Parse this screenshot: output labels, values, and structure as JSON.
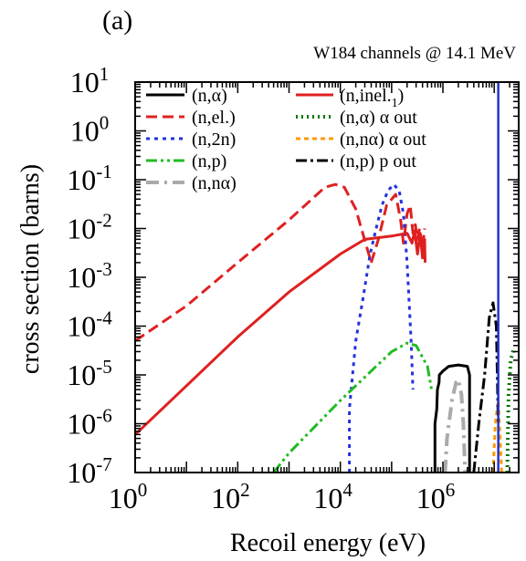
{
  "panel_label": "(a)",
  "chart_data": {
    "type": "line",
    "title": "W184 channels @ 14.1 MeV",
    "xlabel": "Recoil energy (eV)",
    "ylabel": "cross section (barns)",
    "x_scale": "log",
    "y_scale": "log",
    "xlim": [
      1,
      30000000
    ],
    "ylim": [
      1e-07,
      10
    ],
    "x_ticks": [
      {
        "value": 1,
        "base": "10",
        "exp": "0"
      },
      {
        "value": 100,
        "base": "10",
        "exp": "2"
      },
      {
        "value": 10000,
        "base": "10",
        "exp": "4"
      },
      {
        "value": 1000000,
        "base": "10",
        "exp": "6"
      }
    ],
    "y_ticks": [
      {
        "value": 10,
        "base": "10",
        "exp": "1"
      },
      {
        "value": 1,
        "base": "10",
        "exp": "0"
      },
      {
        "value": 0.1,
        "base": "10",
        "exp": "-1"
      },
      {
        "value": 0.01,
        "base": "10",
        "exp": "-2"
      },
      {
        "value": 0.001,
        "base": "10",
        "exp": "-3"
      },
      {
        "value": 0.0001,
        "base": "10",
        "exp": "-4"
      },
      {
        "value": 1e-05,
        "base": "10",
        "exp": "-5"
      },
      {
        "value": 1e-06,
        "base": "10",
        "exp": "-6"
      },
      {
        "value": 1e-07,
        "base": "10",
        "exp": "-7"
      }
    ],
    "grid": false,
    "legend_placement": "top",
    "vertical_lines": [
      {
        "x": 12000000,
        "color": "#2233cc"
      }
    ],
    "series": [
      {
        "name": "(n,α)",
        "color": "#000000",
        "dash": "solid",
        "width": 3,
        "points": [
          [
            700000,
            1e-07
          ],
          [
            700000,
            1e-06
          ],
          [
            760000,
            2e-06
          ],
          [
            780000,
            5e-06
          ],
          [
            840000,
            7e-06
          ],
          [
            850000,
            1e-05
          ],
          [
            1000000,
            1.2e-05
          ],
          [
            1300000,
            1.5e-05
          ],
          [
            2000000,
            1.6e-05
          ],
          [
            3000000,
            1.5e-05
          ],
          [
            3300000,
            1e-05
          ],
          [
            3300000,
            1e-07
          ]
        ]
      },
      {
        "name": "(n,el.)",
        "color": "#e02020",
        "dash": "12,6",
        "width": 3,
        "points": [
          [
            1,
            5e-05
          ],
          [
            10,
            0.00026
          ],
          [
            100,
            0.002
          ],
          [
            1000,
            0.015
          ],
          [
            5000,
            0.07
          ],
          [
            8000,
            0.08
          ],
          [
            12000,
            0.07
          ],
          [
            20000,
            0.025
          ],
          [
            40000,
            0.002
          ],
          [
            55000,
            0.006
          ],
          [
            80000,
            0.03
          ],
          [
            120000,
            0.05
          ],
          [
            150000,
            0.015
          ],
          [
            170000,
            0.005
          ],
          [
            200000,
            0.02
          ],
          [
            230000,
            0.03
          ],
          [
            260000,
            0.008
          ],
          [
            290000,
            0.012
          ],
          [
            320000,
            0.006
          ],
          [
            350000,
            0.01
          ],
          [
            400000,
            0.004
          ],
          [
            440000,
            0.01
          ]
        ]
      },
      {
        "name": "(n,2n)",
        "color": "#2233dd",
        "dash": "4,5",
        "width": 3,
        "points": [
          [
            15000,
            1e-07
          ],
          [
            15000,
            2e-06
          ],
          [
            20000,
            5e-05
          ],
          [
            28000,
            0.0004
          ],
          [
            38000,
            0.003
          ],
          [
            50000,
            0.01
          ],
          [
            65000,
            0.03
          ],
          [
            85000,
            0.06
          ],
          [
            110000,
            0.08
          ],
          [
            140000,
            0.06
          ],
          [
            170000,
            0.02
          ],
          [
            200000,
            0.002
          ],
          [
            240000,
            5e-05
          ],
          [
            260000,
            5e-06
          ]
        ]
      },
      {
        "name": "(n,p)",
        "color": "#22bb22",
        "dash": "12,4,3,4,3,4",
        "width": 3,
        "points": [
          [
            500,
            1e-07
          ],
          [
            1000,
            2.5e-07
          ],
          [
            10000,
            3e-06
          ],
          [
            50000,
            1.5e-05
          ],
          [
            100000,
            3e-05
          ],
          [
            200000,
            4.5e-05
          ],
          [
            300000,
            4e-05
          ],
          [
            500000,
            1.5e-05
          ],
          [
            600000,
            5e-06
          ]
        ]
      },
      {
        "name": "(n,nα)",
        "color": "#aaaaaa",
        "dash": "14,6,3,6",
        "width": 4,
        "points": [
          [
            1100000,
            1e-07
          ],
          [
            1200000,
            5e-07
          ],
          [
            1500000,
            3e-06
          ],
          [
            1800000,
            7e-06
          ],
          [
            2000000,
            8e-06
          ],
          [
            2300000,
            4e-06
          ],
          [
            2500000,
            1e-06
          ],
          [
            2700000,
            1e-07
          ]
        ]
      },
      {
        "name": "(n,inel.$_1$)",
        "color": "#e02020",
        "dash": "solid",
        "width": 3,
        "points": [
          [
            1,
            6e-07
          ],
          [
            10,
            6e-06
          ],
          [
            100,
            6e-05
          ],
          [
            1000,
            0.0005
          ],
          [
            10000,
            0.003
          ],
          [
            30000,
            0.006
          ],
          [
            100000,
            0.007
          ],
          [
            200000,
            0.008
          ],
          [
            250000,
            0.005
          ],
          [
            280000,
            0.009
          ],
          [
            320000,
            0.003
          ],
          [
            360000,
            0.008
          ],
          [
            400000,
            0.0025
          ],
          [
            440000,
            0.006
          ],
          [
            450000,
            0.002
          ]
        ]
      },
      {
        "name": "(n,α) α out",
        "color": "#007700",
        "dash": "2,4",
        "width": 4,
        "points": [
          [
            18000000,
            1e-07
          ],
          [
            19000000,
            4e-06
          ],
          [
            21000000,
            2e-05
          ],
          [
            24000000,
            3.5e-05
          ]
        ]
      },
      {
        "name": "(n,nα) α out",
        "color": "#ff9900",
        "dash": "5,4",
        "width": 3,
        "points": [
          [
            9500000,
            1e-07
          ],
          [
            10500000,
            1e-06
          ],
          [
            12000000,
            3e-06
          ],
          [
            13000000,
            5e-07
          ],
          [
            14000000,
            1e-07
          ]
        ]
      },
      {
        "name": "(n,p) p out",
        "color": "#000000",
        "dash": "12,4,3,4",
        "width": 3,
        "points": [
          [
            4000000,
            1e-07
          ],
          [
            5000000,
            1e-06
          ],
          [
            6500000,
            1e-05
          ],
          [
            8000000,
            0.00015
          ],
          [
            9500000,
            0.0003
          ],
          [
            11000000,
            0.0001
          ],
          [
            11500000,
            1e-05
          ],
          [
            12000000,
            1e-06
          ]
        ]
      }
    ]
  }
}
